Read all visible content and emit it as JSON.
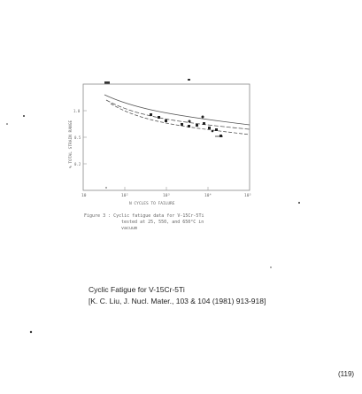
{
  "figure": {
    "figure_caption_line1": "Figure 3 : Cyclic fatigue data for V-15Cr-5Ti",
    "figure_caption_line2": "tested at 25, 550, and 650°C in",
    "figure_caption_line3": "vacuum",
    "x_tick_labels": [
      "10",
      "10²",
      "10³",
      "10⁴",
      "10⁵"
    ],
    "x_axis_label": "N CYCLES TO FAILURE",
    "y_axis_label": "% TOTAL STRAIN RANGE"
  },
  "caption": {
    "title": "Cyclic Fatigue for V-15Cr-5Ti",
    "reference": "[K. C. Liu, J. Nucl. Mater., 103 & 104 (1981) 913-918]"
  },
  "page_number": "(119)"
}
